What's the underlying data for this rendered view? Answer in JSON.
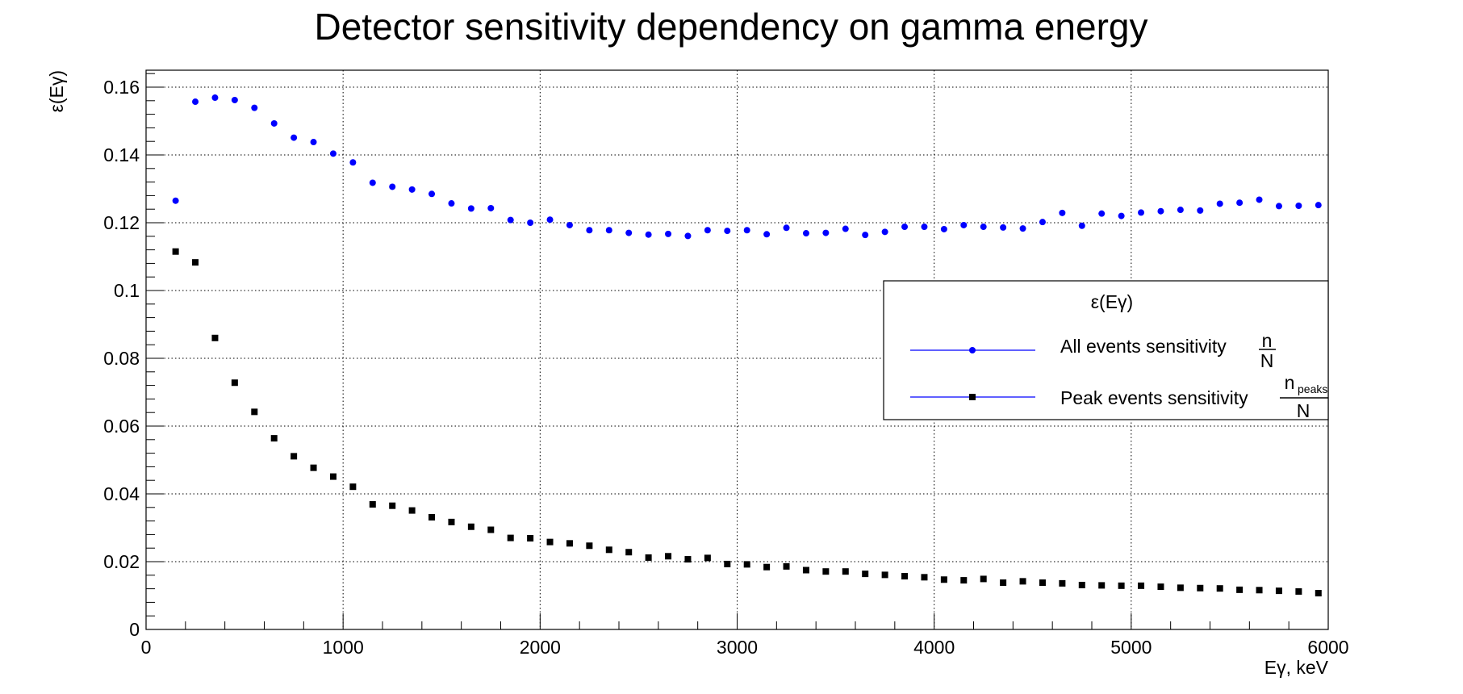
{
  "chart_data": {
    "type": "scatter",
    "title": "Detector sensitivity dependency on gamma energy",
    "xlabel": "Eγ, keV",
    "ylabel": "ε(Eγ)",
    "xlim": [
      0,
      6000
    ],
    "ylim": [
      0,
      0.165
    ],
    "grid": true,
    "legend_position": "right",
    "xticks": [
      0,
      1000,
      2000,
      3000,
      4000,
      5000,
      6000
    ],
    "xtick_labels": [
      "0",
      "1000",
      "2000",
      "3000",
      "4000",
      "5000",
      "6000"
    ],
    "yticks": [
      0,
      0.02,
      0.04,
      0.06,
      0.08,
      0.1,
      0.12,
      0.14,
      0.16
    ],
    "ytick_labels": [
      "0",
      "0.02",
      "0.04",
      "0.06",
      "0.08",
      "0.1",
      "0.12",
      "0.14",
      "0.16"
    ],
    "legend": {
      "header": "ε(Eγ)",
      "entries": [
        {
          "text": "All events sensitivity",
          "frac_num": "n",
          "frac_den": "N"
        },
        {
          "text": "Peak events sensitivity",
          "frac_num": "n",
          "frac_num_sub": "peaks",
          "frac_den": "N"
        }
      ]
    },
    "x": [
      150,
      250,
      350,
      450,
      550,
      650,
      750,
      850,
      950,
      1050,
      1150,
      1250,
      1350,
      1450,
      1550,
      1650,
      1750,
      1850,
      1950,
      2050,
      2150,
      2250,
      2350,
      2450,
      2550,
      2650,
      2750,
      2850,
      2950,
      3050,
      3150,
      3250,
      3350,
      3450,
      3550,
      3650,
      3750,
      3850,
      3950,
      4050,
      4150,
      4250,
      4350,
      4450,
      4550,
      4650,
      4750,
      4850,
      4950,
      5050,
      5150,
      5250,
      5350,
      5450,
      5550,
      5650,
      5750,
      5850,
      5950
    ],
    "series": [
      {
        "color": "#0000ff",
        "marker": "circle",
        "values": [
          0.1265,
          0.1557,
          0.1569,
          0.1562,
          0.1539,
          0.1493,
          0.1451,
          0.1438,
          0.1404,
          0.1378,
          0.1318,
          0.1306,
          0.1298,
          0.1285,
          0.1257,
          0.1242,
          0.1243,
          0.1208,
          0.12,
          0.1209,
          0.1193,
          0.1178,
          0.1178,
          0.117,
          0.1165,
          0.1167,
          0.1161,
          0.1178,
          0.1176,
          0.1178,
          0.1166,
          0.1185,
          0.1169,
          0.117,
          0.1182,
          0.1164,
          0.1173,
          0.1188,
          0.1188,
          0.1181,
          0.1193,
          0.1188,
          0.1186,
          0.1183,
          0.1202,
          0.1229,
          0.1191,
          0.1227,
          0.122,
          0.123,
          0.1234,
          0.1238,
          0.1236,
          0.1256,
          0.1259,
          0.1268,
          0.1249,
          0.125,
          0.1252
        ]
      },
      {
        "color": "#000000",
        "marker": "square",
        "values": [
          0.1115,
          0.1083,
          0.086,
          0.0728,
          0.0642,
          0.0564,
          0.0511,
          0.0477,
          0.0451,
          0.0421,
          0.0369,
          0.0365,
          0.0351,
          0.0331,
          0.0317,
          0.0303,
          0.0294,
          0.027,
          0.0269,
          0.0258,
          0.0254,
          0.0247,
          0.0235,
          0.0228,
          0.0212,
          0.0216,
          0.0207,
          0.0211,
          0.0193,
          0.0192,
          0.0184,
          0.0186,
          0.0175,
          0.0171,
          0.0171,
          0.0164,
          0.0161,
          0.0157,
          0.0154,
          0.0147,
          0.0145,
          0.0149,
          0.0138,
          0.0142,
          0.0138,
          0.0136,
          0.0131,
          0.013,
          0.0129,
          0.0129,
          0.0126,
          0.0123,
          0.0122,
          0.0121,
          0.0117,
          0.0116,
          0.0114,
          0.0112,
          0.0107
        ]
      }
    ]
  }
}
